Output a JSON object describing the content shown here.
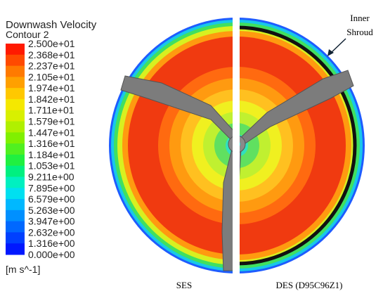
{
  "legend": {
    "title": "Downwash Velocity",
    "subtitle": "Contour 2",
    "labels": [
      "2.500e+01",
      "2.368e+01",
      "2.237e+01",
      "2.105e+01",
      "1.974e+01",
      "1.842e+01",
      "1.711e+01",
      "1.579e+01",
      "1.447e+01",
      "1.316e+01",
      "1.184e+01",
      "1.053e+01",
      "9.211e+00",
      "7.895e+00",
      "6.579e+00",
      "5.263e+00",
      "3.947e+00",
      "2.632e+00",
      "1.316e+00",
      "0.000e+00"
    ],
    "unit": "[m s^-1]"
  },
  "panels": [
    {
      "label": "SES"
    },
    {
      "label": "DES (D95C96Z1)"
    }
  ],
  "annotation": {
    "lines": [
      "Inner",
      "Shroud"
    ]
  }
}
